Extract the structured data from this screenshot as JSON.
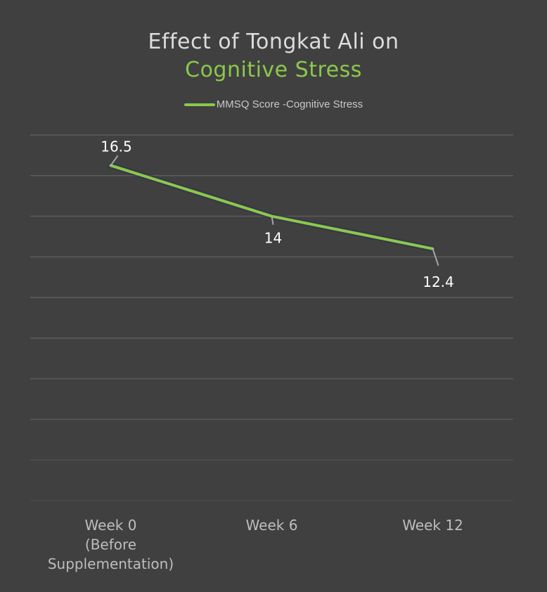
{
  "title": {
    "line1": "Effect of Tongkat Ali on",
    "line2": "Cognitive Stress"
  },
  "colors": {
    "background": "#404040",
    "series": "#8cc84b",
    "title": "#dcdcdc",
    "grid": "#5c5c5c"
  },
  "chart_data": {
    "type": "line",
    "title": "Effect of Tongkat Ali on Cognitive Stress",
    "categories": [
      [
        "Week 0",
        "(Before",
        "Supplementation)"
      ],
      [
        "Week 6"
      ],
      [
        "Week 12"
      ]
    ],
    "series": [
      {
        "name": "MMSQ Score -Cognitive Stress",
        "values": [
          16.5,
          14,
          12.4
        ],
        "labels": [
          "16.5",
          "14",
          "12.4"
        ]
      }
    ],
    "ylim": [
      0,
      18
    ],
    "grid": true,
    "legend": "top-center",
    "xlabel": "",
    "ylabel": ""
  }
}
